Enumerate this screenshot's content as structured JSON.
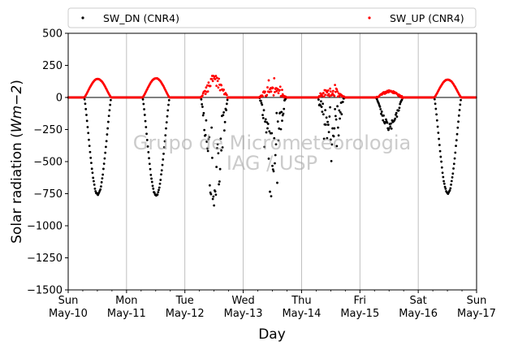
{
  "chart_data": {
    "type": "scatter",
    "xlabel": "Day",
    "ylabel_main": "Solar radiation (",
    "ylabel_unit": "Wm",
    "ylabel_exp": "−2",
    "ylabel_close": ")",
    "ylim": [
      -1500,
      500
    ],
    "yticks": [
      500,
      250,
      0,
      -250,
      -500,
      -750,
      -1000,
      -1250,
      -1500
    ],
    "ytick_labels": [
      "500",
      "250",
      "0",
      "−250",
      "−500",
      "−750",
      "−1000",
      "−1250",
      "−1500"
    ],
    "xlim": [
      "2015-05-10T00:00",
      "2015-05-17T00:00"
    ],
    "xticks": [
      {
        "day": "Sun",
        "date": "May-10"
      },
      {
        "day": "Mon",
        "date": "May-11"
      },
      {
        "day": "Tue",
        "date": "May-12"
      },
      {
        "day": "Wed",
        "date": "May-13"
      },
      {
        "day": "Thu",
        "date": "May-14"
      },
      {
        "day": "Fri",
        "date": "May-15"
      },
      {
        "day": "Sat",
        "date": "May-16"
      },
      {
        "day": "Sun",
        "date": "May-17"
      }
    ],
    "grid": "vertical",
    "zero_line": 0,
    "legend_position": "top, above plot",
    "watermark": [
      "Grupo de Micrometeorologia",
      "IAG / USP"
    ],
    "sunrise_hour": 6.6,
    "sunset_hour": 17.7,
    "series": [
      {
        "name": "SW_DN (CNR4)",
        "color": "#000000",
        "marker": "dot",
        "daily_extreme": [
          -760,
          -770,
          -830,
          -810,
          -520,
          -270,
          -750
        ],
        "daily_character": [
          "clear",
          "clear",
          "variable",
          "cloudy",
          "cloudy",
          "overcast",
          "clear"
        ]
      },
      {
        "name": "SW_UP (CNR4)",
        "color": "#ff0000",
        "marker": "dot",
        "daily_extreme": [
          145,
          150,
          165,
          160,
          110,
          55,
          140
        ],
        "daily_character": [
          "clear",
          "clear",
          "variable",
          "cloudy",
          "cloudy",
          "overcast",
          "clear"
        ]
      }
    ]
  }
}
